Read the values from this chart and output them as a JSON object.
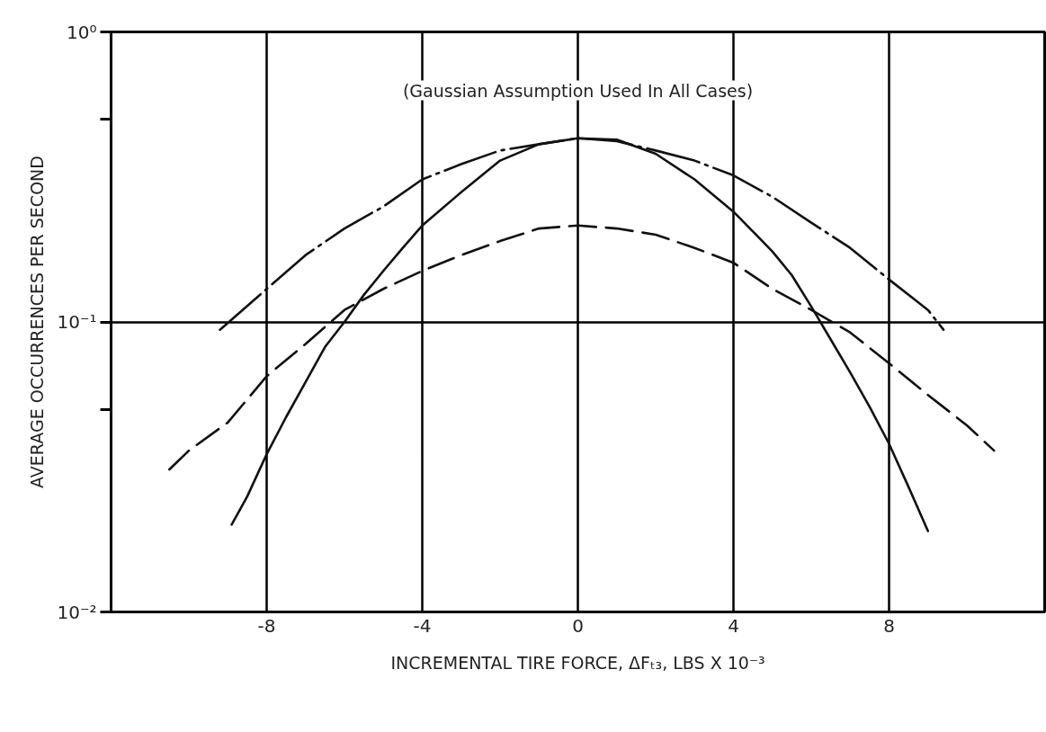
{
  "chart_data": {
    "type": "line",
    "xlabel": "INCREMENTAL TIRE FORCE, ΔFₜ₃, LBS X 10⁻³",
    "ylabel": "AVERAGE OCCURRENCES PER SECOND",
    "annotations": [
      "(Gaussian Assumption Used In All Cases)"
    ],
    "log": "y",
    "xlim": [
      -12,
      12
    ],
    "ylim": [
      0.01,
      1
    ],
    "xticks": [
      -8,
      -4,
      0,
      4,
      8
    ],
    "yticks": [
      {
        "value": 1,
        "label": "10⁰"
      },
      {
        "value": 0.5,
        "label": null
      },
      {
        "value": 0.1,
        "label": "10⁻¹"
      },
      {
        "value": 0.05,
        "label": null
      },
      {
        "value": 0.01,
        "label": "10⁻²"
      }
    ],
    "grid": true,
    "series": [
      {
        "color": "#111111",
        "line_style": "solid",
        "x": [
          -8.9,
          -8.5,
          -8,
          -7.5,
          -7,
          -6.5,
          -6,
          -5.5,
          -5,
          -4.5,
          -4,
          -3,
          -2,
          -1,
          0,
          1,
          2,
          3,
          4,
          4.5,
          5,
          5.5,
          6,
          6.5,
          7,
          7.5,
          8,
          8.5,
          9.0
        ],
        "values": [
          0.02,
          0.025,
          0.035,
          0.047,
          0.062,
          0.082,
          0.1,
          0.124,
          0.15,
          0.18,
          0.215,
          0.28,
          0.36,
          0.41,
          0.43,
          0.425,
          0.38,
          0.31,
          0.24,
          0.205,
          0.175,
          0.145,
          0.113,
          0.087,
          0.067,
          0.051,
          0.038,
          0.027,
          0.019
        ]
      },
      {
        "color": "#111111",
        "line_style": "dashdot",
        "x": [
          -9.2,
          -8,
          -7,
          -6,
          -5,
          -4,
          -3,
          -2,
          -1,
          0,
          1,
          2,
          3,
          4,
          5,
          6,
          7,
          8,
          9,
          9.4
        ],
        "values": [
          0.094,
          0.13,
          0.17,
          0.21,
          0.25,
          0.31,
          0.35,
          0.39,
          0.41,
          0.43,
          0.42,
          0.39,
          0.36,
          0.32,
          0.27,
          0.22,
          0.18,
          0.14,
          0.11,
          0.094
        ]
      },
      {
        "color": "#111111",
        "line_style": "dashed",
        "x": [
          -10.5,
          -10,
          -9,
          -8,
          -7,
          -6,
          -5,
          -4,
          -3,
          -2,
          -1,
          0,
          1,
          2,
          3,
          4,
          5,
          6,
          7,
          8,
          9,
          10,
          10.7
        ],
        "values": [
          0.031,
          0.036,
          0.045,
          0.065,
          0.084,
          0.11,
          0.13,
          0.15,
          0.17,
          0.19,
          0.21,
          0.215,
          0.21,
          0.2,
          0.18,
          0.16,
          0.13,
          0.11,
          0.092,
          0.072,
          0.056,
          0.044,
          0.036
        ]
      }
    ]
  }
}
